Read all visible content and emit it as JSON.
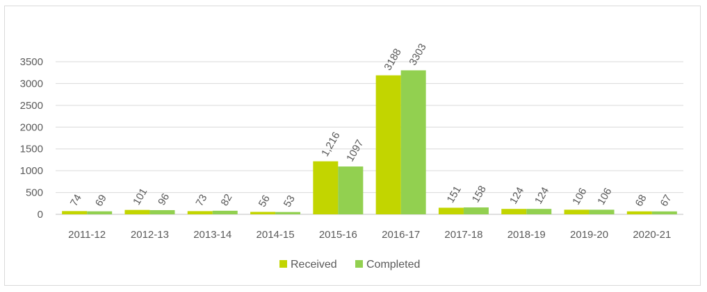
{
  "chart_data": {
    "type": "bar",
    "title": "",
    "xlabel": "",
    "ylabel": "",
    "categories": [
      "2011-12",
      "2012-13",
      "2013-14",
      "2014-15",
      "2015-16",
      "2016-17",
      "2017-18",
      "2018-19",
      "2019-20",
      "2020-21"
    ],
    "series": [
      {
        "name": "Received",
        "color": "#c2d500",
        "values": [
          74,
          101,
          73,
          56,
          1216,
          3188,
          151,
          124,
          106,
          68
        ],
        "labels": [
          "74",
          "101",
          "73",
          "56",
          "1,216",
          "3188",
          "151",
          "124",
          "106",
          "68"
        ]
      },
      {
        "name": "Completed",
        "color": "#92d050",
        "values": [
          69,
          96,
          82,
          53,
          1097,
          3303,
          158,
          124,
          106,
          67
        ],
        "labels": [
          "69",
          "96",
          "82",
          "53",
          "1097",
          "3303",
          "158",
          "124",
          "106",
          "67"
        ]
      }
    ],
    "ylim": [
      0,
      3500
    ],
    "yticks": [
      0,
      500,
      1000,
      1500,
      2000,
      2500,
      3000,
      3500
    ],
    "grid": true,
    "legend": "bottom"
  }
}
